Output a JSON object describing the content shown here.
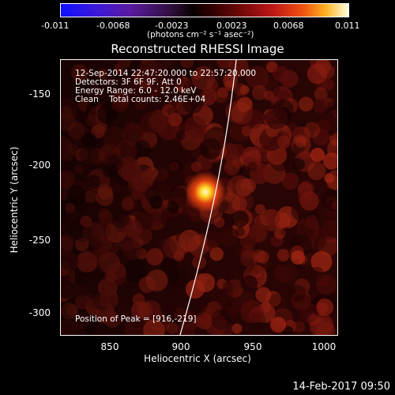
{
  "colorbar": {
    "ticks": [
      "-0.011",
      "-0.0068",
      "-0.0023",
      "0.0023",
      "0.0068",
      "0.011"
    ],
    "units": "(photons cm⁻² s⁻¹ asec⁻²)"
  },
  "title": "Reconstructed RHESSI Image",
  "info": {
    "line1": "12-Sep-2014 22:47:20.000 to 22:57:20.000",
    "line2": "Detectors: 3F 6F 9F, Att 0",
    "line3": "Energy Range: 6.0 - 12.0 keV",
    "line4": "Clean    Total counts: 2.46E+04",
    "peak": "Position of Peak = [916,-219]"
  },
  "axes": {
    "xlabel": "Heliocentric X (arcsec)",
    "ylabel": "Heliocentric Y (arcsec)",
    "xticks": [
      "850",
      "900",
      "950",
      "1000"
    ],
    "yticks": [
      "-150",
      "-200",
      "-250",
      "-300"
    ]
  },
  "colors": {
    "background": "#000000",
    "peak": "#ffffd0",
    "limb": "#ffffff"
  },
  "timestamp": "14-Feb-2017 09:50"
}
